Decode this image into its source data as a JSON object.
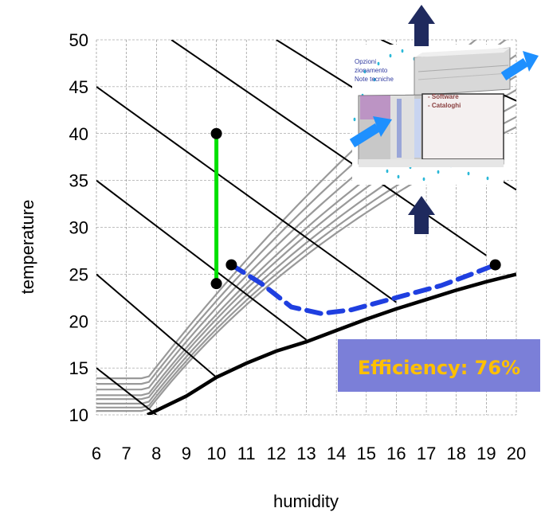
{
  "chart_data": {
    "type": "line",
    "xlabel": "humidity",
    "ylabel": "temperature",
    "xlim": [
      6,
      20
    ],
    "ylim": [
      10,
      50
    ],
    "x_ticks": [
      6,
      7,
      8,
      9,
      10,
      11,
      12,
      13,
      14,
      15,
      16,
      17,
      18,
      19,
      20
    ],
    "y_ticks": [
      10,
      15,
      20,
      25,
      30,
      35,
      40,
      45,
      50
    ],
    "grid": true,
    "series": [
      {
        "style": "solid",
        "color": "#00e000",
        "points": [
          [
            10,
            40
          ],
          [
            10,
            24
          ]
        ]
      },
      {
        "style": "dashed",
        "color": "#1f3fe0",
        "points": [
          [
            10.5,
            26
          ],
          [
            11.5,
            24
          ],
          [
            12.5,
            21.5
          ],
          [
            13.5,
            20.8
          ],
          [
            14.5,
            21.2
          ],
          [
            16,
            22.5
          ],
          [
            17.5,
            23.8
          ],
          [
            18.5,
            25
          ],
          [
            19.3,
            26
          ]
        ]
      }
    ],
    "markers": [
      [
        10,
        40
      ],
      [
        10,
        24
      ],
      [
        10.5,
        26
      ],
      [
        19.3,
        26
      ]
    ],
    "saturation_curve": [
      [
        7.7,
        10
      ],
      [
        9,
        12
      ],
      [
        10,
        14
      ],
      [
        11,
        15.5
      ],
      [
        12,
        16.8
      ],
      [
        13,
        17.8
      ],
      [
        14,
        19
      ],
      [
        15,
        20.2
      ],
      [
        16,
        21.3
      ],
      [
        17,
        22.3
      ],
      [
        18,
        23.3
      ],
      [
        19,
        24.2
      ],
      [
        20,
        25
      ]
    ],
    "annotations": [
      {
        "text": "Efficiency: 76%",
        "color": "#ffc000",
        "background": "#7b7fd8"
      }
    ],
    "inset_labels": [
      "Opzioni",
      "zionamento",
      "Note tecniche",
      "- Software",
      "- Cataloghi"
    ]
  }
}
